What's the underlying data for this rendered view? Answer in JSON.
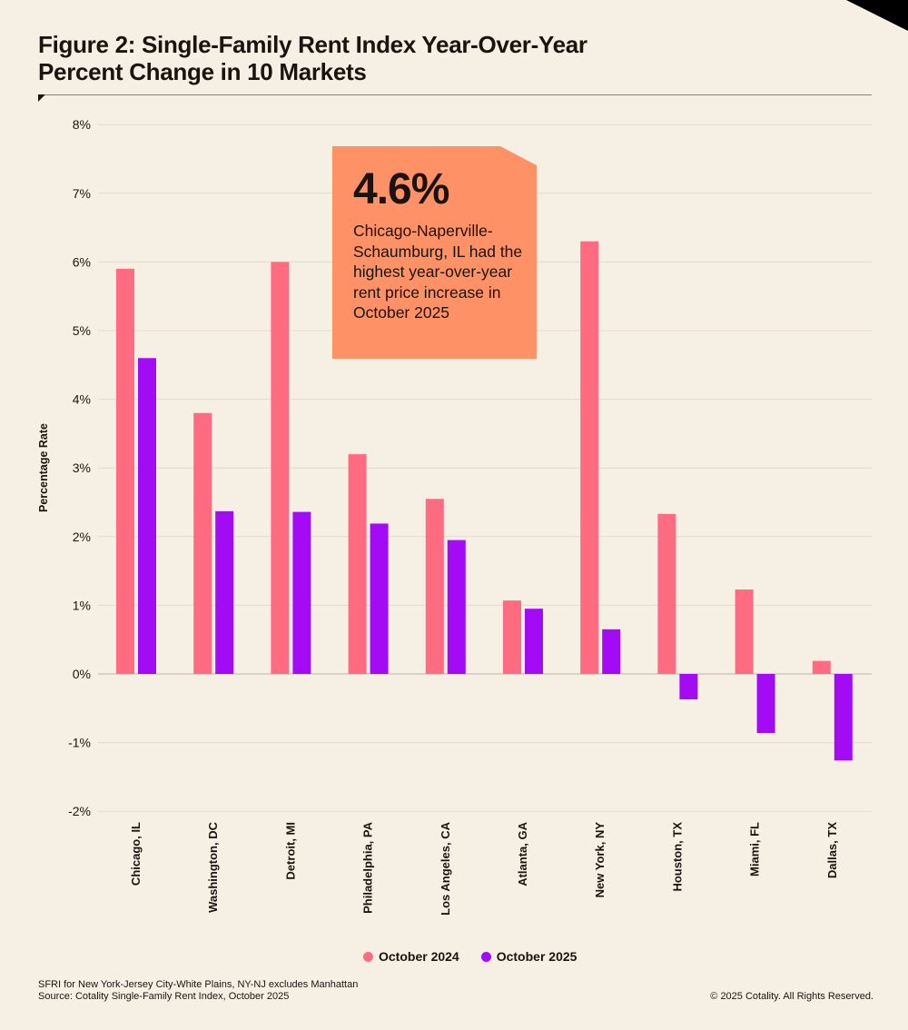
{
  "title": "Figure 2: Single-Family Rent Index Year-Over-Year Percent Change in 10 Markets",
  "callout": {
    "value": "4.6%",
    "text": "Chicago-Naperville-Schaumburg, IL had the highest year-over-year rent price increase in October 2025"
  },
  "footnote": {
    "line1": "SFRI for New York-Jersey City-White Plains, NY-NJ excludes Manhattan",
    "line2": "Source: Cotality Single-Family Rent Index, October 2025"
  },
  "copyright": "© 2025 Cotality. All Rights Reserved.",
  "chart_data": {
    "type": "bar",
    "title": "Figure 2: Single-Family Rent Index Year-Over-Year Percent Change in 10 Markets",
    "xlabel": "",
    "ylabel": "Percentage Rate",
    "ylim": [
      -2,
      8
    ],
    "yticks": [
      -2,
      -1,
      0,
      1,
      2,
      3,
      4,
      5,
      6,
      7,
      8
    ],
    "ytick_labels": [
      "-2%",
      "-1%",
      "0%",
      "1%",
      "2%",
      "3%",
      "4%",
      "5%",
      "6%",
      "7%",
      "8%"
    ],
    "grid": true,
    "legend_position": "bottom-center",
    "categories": [
      "Chicago, IL",
      "Washington, DC",
      "Detroit, MI",
      "Philadelphia, PA",
      "Los Angeles, CA",
      "Atlanta, GA",
      "New York, NY",
      "Houston, TX",
      "Miami, FL",
      "Dallas, TX"
    ],
    "series": [
      {
        "name": "October 2024",
        "color": "#ff6b80",
        "values": [
          5.9,
          3.8,
          6.0,
          3.2,
          2.55,
          1.07,
          6.3,
          2.33,
          1.23,
          0.19
        ]
      },
      {
        "name": "October 2025",
        "color": "#a40bf5",
        "values": [
          4.6,
          2.37,
          2.36,
          2.19,
          1.95,
          0.95,
          0.65,
          -0.37,
          -0.86,
          -1.26
        ]
      }
    ]
  }
}
